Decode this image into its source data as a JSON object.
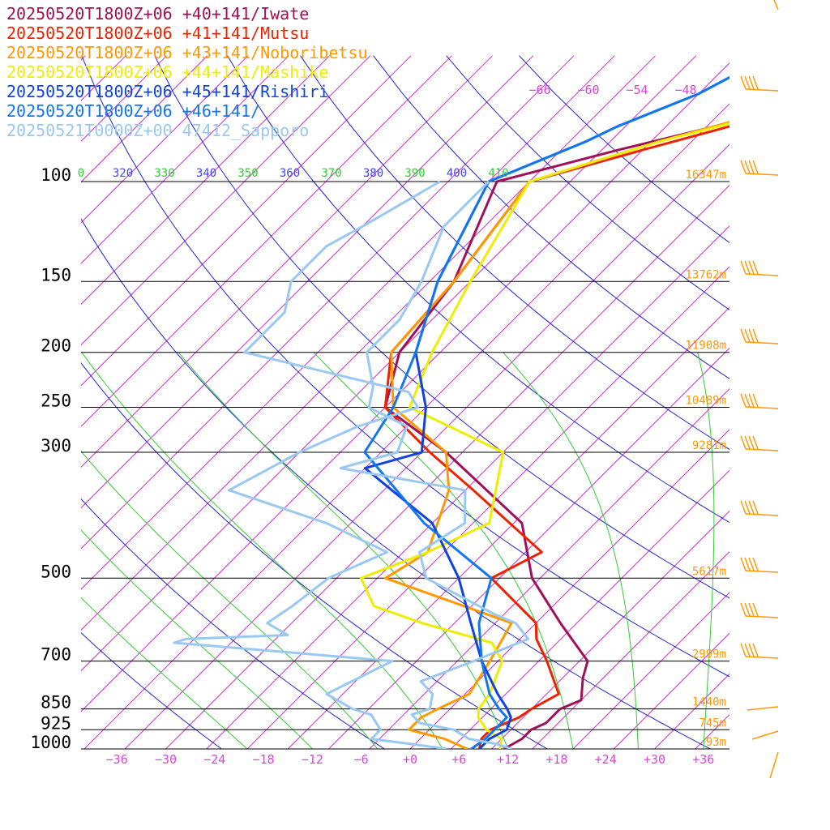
{
  "colors": {
    "isobar": "#000000",
    "isotherm": "#cc33cc",
    "dry_adiabat": "#2222cc",
    "moist_adiabat": "#33cc33",
    "label_theta_dry": "#4444ee",
    "label_theta_moist": "#33cc33",
    "mixing_label": "#dd44dd",
    "height_label": "#ff9900",
    "wind_barb": "#ff9900"
  },
  "chart_data": {
    "type": "skew-t log-p",
    "legend": [
      {
        "label": "20250520T1800Z+06 +40+141/Iwate",
        "color": "#a0105a"
      },
      {
        "label": "20250520T1800Z+06 +41+141/Mutsu",
        "color": "#ee2200"
      },
      {
        "label": "20250520T1800Z+06 +43+141/Noboribetsu",
        "color": "#ff9900"
      },
      {
        "label": "20250520T1800Z+06 +44+141/Mashike",
        "color": "#eeee00"
      },
      {
        "label": "20250520T1800Z+06 +45+141/Rishiri",
        "color": "#1144dd"
      },
      {
        "label": "20250520T1800Z+06 +46+141/",
        "color": "#1177ee"
      },
      {
        "label": "20250521T0000Z+00 47412_Sapporo",
        "color": "#99c8f2"
      }
    ],
    "pressure_levels": [
      {
        "p": 100,
        "label": "100",
        "height": "16347m"
      },
      {
        "p": 150,
        "label": "150",
        "height": "13762m"
      },
      {
        "p": 200,
        "label": "200",
        "height": "11908m"
      },
      {
        "p": 250,
        "label": "250",
        "height": "10489m"
      },
      {
        "p": 300,
        "label": "300",
        "height": "9281m"
      },
      {
        "p": 500,
        "label": "500",
        "height": "5617m"
      },
      {
        "p": 700,
        "label": "700",
        "height": "2999m"
      },
      {
        "p": 850,
        "label": "850",
        "height": "1440m"
      },
      {
        "p": 925,
        "label": "925",
        "height": "745m"
      },
      {
        "p": 1000,
        "label": "1000",
        "height": "93m"
      }
    ],
    "temperature_ticks": [
      {
        "t": -36,
        "label": "−36"
      },
      {
        "t": -30,
        "label": "−30"
      },
      {
        "t": -24,
        "label": "−24"
      },
      {
        "t": -18,
        "label": "−18"
      },
      {
        "t": -12,
        "label": "−12"
      },
      {
        "t": -6,
        "label": "−6"
      },
      {
        "t": 0,
        "label": "+0"
      },
      {
        "t": 6,
        "label": "+6"
      },
      {
        "t": 12,
        "label": "+12"
      },
      {
        "t": 18,
        "label": "+18"
      },
      {
        "t": 24,
        "label": "+24"
      },
      {
        "t": 30,
        "label": "+30"
      },
      {
        "t": 36,
        "label": "+36"
      }
    ],
    "upper_temperature_labels": [
      "−66",
      "−60",
      "−54",
      "−48"
    ],
    "theta_labels": [
      {
        "value": "0",
        "kind": "moist"
      },
      {
        "value": "320",
        "kind": "dry"
      },
      {
        "value": "330",
        "kind": "moist"
      },
      {
        "value": "340",
        "kind": "dry"
      },
      {
        "value": "350",
        "kind": "moist"
      },
      {
        "value": "360",
        "kind": "dry"
      },
      {
        "value": "370",
        "kind": "moist"
      },
      {
        "value": "380",
        "kind": "dry"
      },
      {
        "value": "390",
        "kind": "moist"
      },
      {
        "value": "400",
        "kind": "dry"
      },
      {
        "value": "410",
        "kind": "moist"
      }
    ],
    "series": [
      {
        "name": "20250520T1800Z+06 +40+141/Iwate",
        "color": "#a0105a",
        "kind": "temperature",
        "points": [
          [
            1000,
            11.5
          ],
          [
            960,
            12.5
          ],
          [
            925,
            12.5
          ],
          [
            900,
            13.5
          ],
          [
            850,
            13.5
          ],
          [
            820,
            15
          ],
          [
            750,
            12.5
          ],
          [
            700,
            11
          ],
          [
            600,
            3
          ],
          [
            500,
            -6
          ],
          [
            400,
            -14
          ],
          [
            300,
            -32
          ],
          [
            250,
            -45
          ],
          [
            200,
            -50
          ],
          [
            150,
            -52
          ],
          [
            100,
            -59
          ],
          [
            88,
            -48
          ],
          [
            75,
            -33
          ],
          [
            65,
            -20
          ]
        ]
      },
      {
        "name": "20250520T1800Z+06 +41+141/Mutsu",
        "color": "#ee2200",
        "kind": "temperature",
        "points": [
          [
            1000,
            8.5
          ],
          [
            960,
            7.5
          ],
          [
            925,
            7.5
          ],
          [
            880,
            9.5
          ],
          [
            850,
            10
          ],
          [
            800,
            11.5
          ],
          [
            700,
            6
          ],
          [
            640,
            2
          ],
          [
            600,
            0
          ],
          [
            500,
            -11
          ],
          [
            450,
            -8
          ],
          [
            350,
            -24
          ],
          [
            300,
            -34
          ],
          [
            250,
            -45
          ],
          [
            200,
            -51
          ],
          [
            150,
            -52
          ],
          [
            100,
            -55
          ],
          [
            88,
            -45
          ],
          [
            75,
            -32
          ],
          [
            65,
            -20
          ]
        ]
      },
      {
        "name": "20250520T1800Z+06 +43+141/Noboribetsu",
        "color": "#ff9900",
        "kind": "temperature",
        "points": [
          [
            1000,
            7
          ],
          [
            960,
            3
          ],
          [
            925,
            -2.5
          ],
          [
            880,
            -2.5
          ],
          [
            850,
            -1.5
          ],
          [
            800,
            0.5
          ],
          [
            700,
            -1
          ],
          [
            600,
            -3
          ],
          [
            500,
            -24
          ],
          [
            450,
            -22
          ],
          [
            350,
            -27
          ],
          [
            300,
            -32
          ],
          [
            250,
            -44
          ],
          [
            200,
            -51
          ],
          [
            150,
            -52
          ],
          [
            100,
            -55
          ],
          [
            85,
            -44
          ],
          [
            75,
            -34
          ],
          [
            65,
            -21
          ]
        ]
      },
      {
        "name": "20250520T1800Z+06 +44+141/Mashike",
        "color": "#eeee00",
        "kind": "temperature",
        "points": [
          [
            1000,
            11
          ],
          [
            960,
            10
          ],
          [
            925,
            7
          ],
          [
            880,
            4.5
          ],
          [
            850,
            3.5
          ],
          [
            800,
            3
          ],
          [
            700,
            0.5
          ],
          [
            650,
            -3
          ],
          [
            600,
            -14
          ],
          [
            560,
            -22
          ],
          [
            500,
            -27
          ],
          [
            450,
            -22
          ],
          [
            400,
            -18
          ],
          [
            300,
            -25
          ],
          [
            250,
            -42
          ],
          [
            200,
            -46
          ],
          [
            150,
            -50
          ],
          [
            100,
            -55
          ],
          [
            85,
            -44
          ],
          [
            75,
            -33
          ],
          [
            65,
            -22
          ]
        ]
      },
      {
        "name": "20250520T1800Z+06 +45+141/Rishiri",
        "color": "#1144dd",
        "kind": "temperature",
        "points": [
          [
            1000,
            8.5
          ],
          [
            960,
            8.5
          ],
          [
            925,
            9.5
          ],
          [
            880,
            8.5
          ],
          [
            850,
            7
          ],
          [
            800,
            4
          ],
          [
            700,
            -2
          ],
          [
            600,
            -8
          ],
          [
            500,
            -15
          ],
          [
            400,
            -25
          ],
          [
            350,
            -34
          ],
          [
            320,
            -40
          ],
          [
            300,
            -35
          ],
          [
            250,
            -40
          ],
          [
            200,
            -48
          ],
          [
            150,
            -54
          ],
          [
            100,
            -60
          ],
          [
            85,
            -53
          ],
          [
            80,
            -51
          ],
          [
            70,
            -45
          ],
          [
            65,
            -43
          ]
        ]
      },
      {
        "name": "20250520T1800Z+06 +46+141/",
        "color": "#1177ee",
        "kind": "temperature",
        "points": [
          [
            1000,
            7.5
          ],
          [
            960,
            8
          ],
          [
            925,
            8
          ],
          [
            880,
            8
          ],
          [
            850,
            6
          ],
          [
            800,
            3
          ],
          [
            700,
            -2
          ],
          [
            600,
            -7
          ],
          [
            500,
            -11
          ],
          [
            400,
            -26
          ],
          [
            300,
            -42
          ],
          [
            250,
            -44
          ],
          [
            200,
            -48
          ],
          [
            150,
            -54
          ],
          [
            100,
            -60
          ],
          [
            85,
            -53
          ],
          [
            80,
            -51
          ],
          [
            70,
            -45
          ],
          [
            65,
            -43
          ]
        ]
      },
      {
        "name": "20250521T0000Z+00 47412_Sapporo",
        "color": "#99c8f2",
        "kind": "temperature",
        "points": [
          [
            1000,
            12.5
          ],
          [
            980,
            10
          ],
          [
            960,
            6
          ],
          [
            925,
            3
          ],
          [
            900,
            -2
          ],
          [
            870,
            -4
          ],
          [
            850,
            -2.5
          ],
          [
            800,
            -4
          ],
          [
            760,
            -7
          ],
          [
            700,
            -3
          ],
          [
            640,
            1
          ],
          [
            600,
            -2.5
          ],
          [
            580,
            -6
          ],
          [
            500,
            -19
          ],
          [
            450,
            -23
          ],
          [
            400,
            -21
          ],
          [
            350,
            -25
          ],
          [
            320,
            -43
          ],
          [
            300,
            -38
          ],
          [
            270,
            -40
          ],
          [
            250,
            -47
          ],
          [
            230,
            -49
          ],
          [
            200,
            -54
          ],
          [
            175,
            -54
          ],
          [
            150,
            -56
          ],
          [
            120,
            -60
          ],
          [
            100,
            -60
          ]
        ]
      },
      {
        "name": "20250521T0000Z+00 47412_Sapporo",
        "color": "#99c8f2",
        "kind": "dewpoint",
        "points": [
          [
            1000,
            4.5
          ],
          [
            980,
            -0.5
          ],
          [
            960,
            -6
          ],
          [
            925,
            -6
          ],
          [
            870,
            -9
          ],
          [
            850,
            -12
          ],
          [
            800,
            -17
          ],
          [
            700,
            -13
          ],
          [
            650,
            -42
          ],
          [
            640,
            -41
          ],
          [
            630,
            -29
          ],
          [
            600,
            -33
          ],
          [
            560,
            -32
          ],
          [
            500,
            -31
          ],
          [
            450,
            -27
          ],
          [
            400,
            -38
          ],
          [
            350,
            -54
          ],
          [
            300,
            -50
          ],
          [
            270,
            -46
          ],
          [
            250,
            -41
          ],
          [
            235,
            -44
          ],
          [
            200,
            -69
          ],
          [
            170,
            -69
          ],
          [
            150,
            -72
          ],
          [
            130,
            -72
          ],
          [
            120,
            -70
          ],
          [
            100,
            -66
          ]
        ]
      }
    ]
  }
}
